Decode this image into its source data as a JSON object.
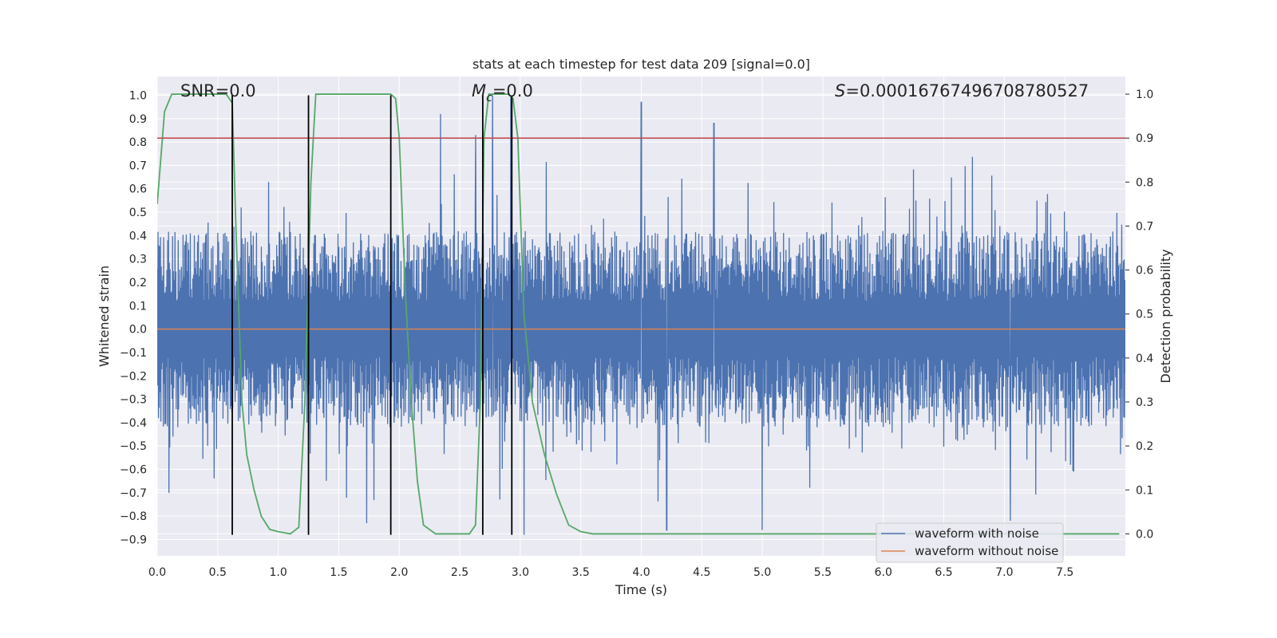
{
  "chart_data": {
    "type": "line",
    "title": "stats at each timestep for test data 209 [signal=0.0]",
    "xlabel": "Time (s)",
    "ylabel": "Whitened strain",
    "y2label": "Detection probability",
    "xlim": [
      0.0,
      8.0
    ],
    "ylim": [
      -0.97,
      1.08
    ],
    "y2lim": [
      -0.05,
      1.04
    ],
    "xticks": [
      0.0,
      0.5,
      1.0,
      1.5,
      2.0,
      2.5,
      3.0,
      3.5,
      4.0,
      4.5,
      5.0,
      5.5,
      6.0,
      6.5,
      7.0,
      7.5
    ],
    "xtick_labels": [
      "0.0",
      "0.5",
      "1.0",
      "1.5",
      "2.0",
      "2.5",
      "3.0",
      "3.5",
      "4.0",
      "4.5",
      "5.0",
      "5.5",
      "6.0",
      "6.5",
      "7.0",
      "7.5"
    ],
    "yticks": [
      -0.9,
      -0.8,
      -0.7,
      -0.6,
      -0.5,
      -0.4,
      -0.3,
      -0.2,
      -0.1,
      0.0,
      0.1,
      0.2,
      0.3,
      0.4,
      0.5,
      0.6,
      0.7,
      0.8,
      0.9,
      1.0
    ],
    "ytick_labels": [
      "−0.9",
      "−0.8",
      "−0.7",
      "−0.6",
      "−0.5",
      "−0.4",
      "−0.3",
      "−0.2",
      "−0.1",
      "0.0",
      "0.1",
      "0.2",
      "0.3",
      "0.4",
      "0.5",
      "0.6",
      "0.7",
      "0.8",
      "0.9",
      "1.0"
    ],
    "y2ticks": [
      0.0,
      0.1,
      0.2,
      0.3,
      0.4,
      0.5,
      0.6,
      0.7,
      0.8,
      0.9,
      1.0
    ],
    "y2tick_labels": [
      "0.0",
      "0.1",
      "0.2",
      "0.3",
      "0.4",
      "0.5",
      "0.6",
      "0.7",
      "0.8",
      "0.9",
      "1.0"
    ],
    "grid": true,
    "legend_position": "lower-right",
    "annotations": {
      "snr": "SNR=0.0",
      "mc_symbol": "M",
      "mc_sub": "c",
      "mc_value": "=0.0",
      "s_symbol": "S",
      "s_value": "=0.00016767496708780527"
    },
    "series": [
      {
        "name": "waveform with noise",
        "color": "#4c72b0",
        "kind": "noise",
        "x_range": [
          0.0,
          8.0
        ],
        "typical_amplitude": 0.4,
        "peaks": [
          {
            "x": 2.34,
            "y": 0.92
          },
          {
            "x": 2.77,
            "y": 1.0
          },
          {
            "x": 2.92,
            "y": 1.0
          },
          {
            "x": 4.0,
            "y": 0.97
          },
          {
            "x": 4.6,
            "y": 0.88
          },
          {
            "x": 2.63,
            "y": 0.83
          },
          {
            "x": 4.21,
            "y": -0.86
          },
          {
            "x": 5.0,
            "y": -0.86
          },
          {
            "x": 7.05,
            "y": -0.82
          },
          {
            "x": 3.03,
            "y": -0.88
          },
          {
            "x": 1.73,
            "y": -0.83
          }
        ]
      },
      {
        "name": "waveform without noise",
        "color": "#dd8452",
        "kind": "constant",
        "y": 0.0
      },
      {
        "name": "detection probability",
        "color": "#55a868",
        "axis": "right",
        "x": [
          0.0,
          0.06,
          0.12,
          0.2,
          0.3,
          0.4,
          0.5,
          0.57,
          0.62,
          0.65,
          0.7,
          0.74,
          0.8,
          0.86,
          0.93,
          1.0,
          1.1,
          1.17,
          1.22,
          1.27,
          1.31,
          1.35,
          1.45,
          1.6,
          1.8,
          1.93,
          1.97,
          2.0,
          2.05,
          2.1,
          2.15,
          2.2,
          2.3,
          2.45,
          2.58,
          2.63,
          2.67,
          2.7,
          2.74,
          2.8,
          2.9,
          2.94,
          2.98,
          3.03,
          3.1,
          3.2,
          3.3,
          3.4,
          3.5,
          3.6,
          4.0,
          5.0,
          6.0,
          7.0,
          7.95
        ],
        "y": [
          0.75,
          0.96,
          1.0,
          1.0,
          1.0,
          1.0,
          1.0,
          1.0,
          0.98,
          0.7,
          0.3,
          0.18,
          0.1,
          0.04,
          0.01,
          0.005,
          0.0,
          0.015,
          0.3,
          0.8,
          1.0,
          1.0,
          1.0,
          1.0,
          1.0,
          1.0,
          0.99,
          0.9,
          0.55,
          0.3,
          0.12,
          0.02,
          0.0,
          0.0,
          0.0,
          0.02,
          0.3,
          0.9,
          1.0,
          1.0,
          1.0,
          0.99,
          0.9,
          0.5,
          0.3,
          0.18,
          0.09,
          0.02,
          0.005,
          0.0,
          0.0,
          0.0,
          0.0,
          0.0,
          0.0
        ]
      },
      {
        "name": "detection threshold",
        "color": "#c44e52",
        "axis": "right",
        "kind": "constant",
        "y": 0.9
      }
    ],
    "vertical_markers": {
      "color": "#000000",
      "x": [
        0.62,
        1.25,
        1.93,
        2.69,
        2.93
      ],
      "y_from": -0.88,
      "y_to": 1.0
    }
  },
  "legend": {
    "items": [
      {
        "label": "waveform with noise",
        "color": "#4c72b0"
      },
      {
        "label": "waveform without noise",
        "color": "#dd8452"
      }
    ]
  }
}
